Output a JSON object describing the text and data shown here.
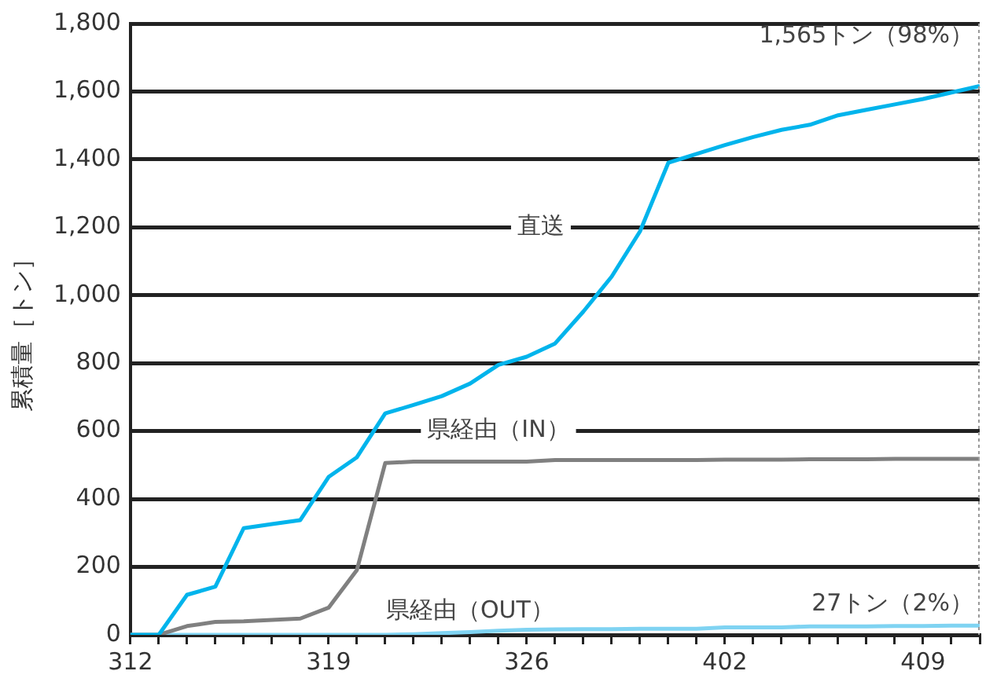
{
  "chart_data": {
    "type": "line",
    "ylabel": "累積量［トン］",
    "categories": [
      "312",
      null,
      null,
      null,
      null,
      null,
      null,
      "319",
      null,
      null,
      null,
      null,
      null,
      null,
      "326",
      null,
      null,
      null,
      null,
      null,
      null,
      "402",
      null,
      null,
      null,
      null,
      null,
      null,
      "409",
      null,
      null
    ],
    "series": [
      {
        "name": "直送",
        "color": "#00b4ec",
        "values": [
          0,
          0,
          118,
          142,
          314,
          326,
          338,
          465,
          523,
          652,
          677,
          703,
          740,
          795,
          819,
          858,
          952,
          1055,
          1188,
          1390,
          1416,
          1442,
          1466,
          1487,
          1502,
          1530,
          1546,
          1562,
          1578,
          1597,
          1616
        ]
      },
      {
        "name": "県経由（IN）",
        "color": "#808080",
        "values": [
          0,
          0,
          26,
          38,
          40,
          44,
          48,
          80,
          191,
          506,
          510,
          510,
          510,
          510,
          510,
          515,
          515,
          515,
          515,
          515,
          515,
          516,
          516,
          516,
          517,
          517,
          517,
          518,
          518,
          518,
          518
        ]
      },
      {
        "name": "県経由（OUT）",
        "color": "#7fd3f2",
        "values": [
          0,
          0,
          0,
          0,
          0,
          0,
          0,
          0,
          0,
          0,
          2,
          5,
          8,
          12,
          15,
          16,
          17,
          17,
          18,
          18,
          18,
          22,
          22,
          22,
          25,
          25,
          25,
          26,
          26,
          27,
          27
        ]
      }
    ],
    "ylim": [
      0,
      1800
    ],
    "yticks": [
      0,
      200,
      400,
      600,
      800,
      {
        "value": 1000,
        "label": "1,000"
      },
      {
        "value": 1200,
        "label": "1,200"
      },
      {
        "value": 1400,
        "label": "1,400"
      },
      {
        "value": 1600,
        "label": "1,600"
      },
      {
        "value": 1800,
        "label": "1,800"
      }
    ],
    "grid": "y",
    "legend": false,
    "marker": "none",
    "line_style": "solid",
    "annotations": [
      "1,565トン（98%）",
      "27トン（2%）"
    ]
  }
}
